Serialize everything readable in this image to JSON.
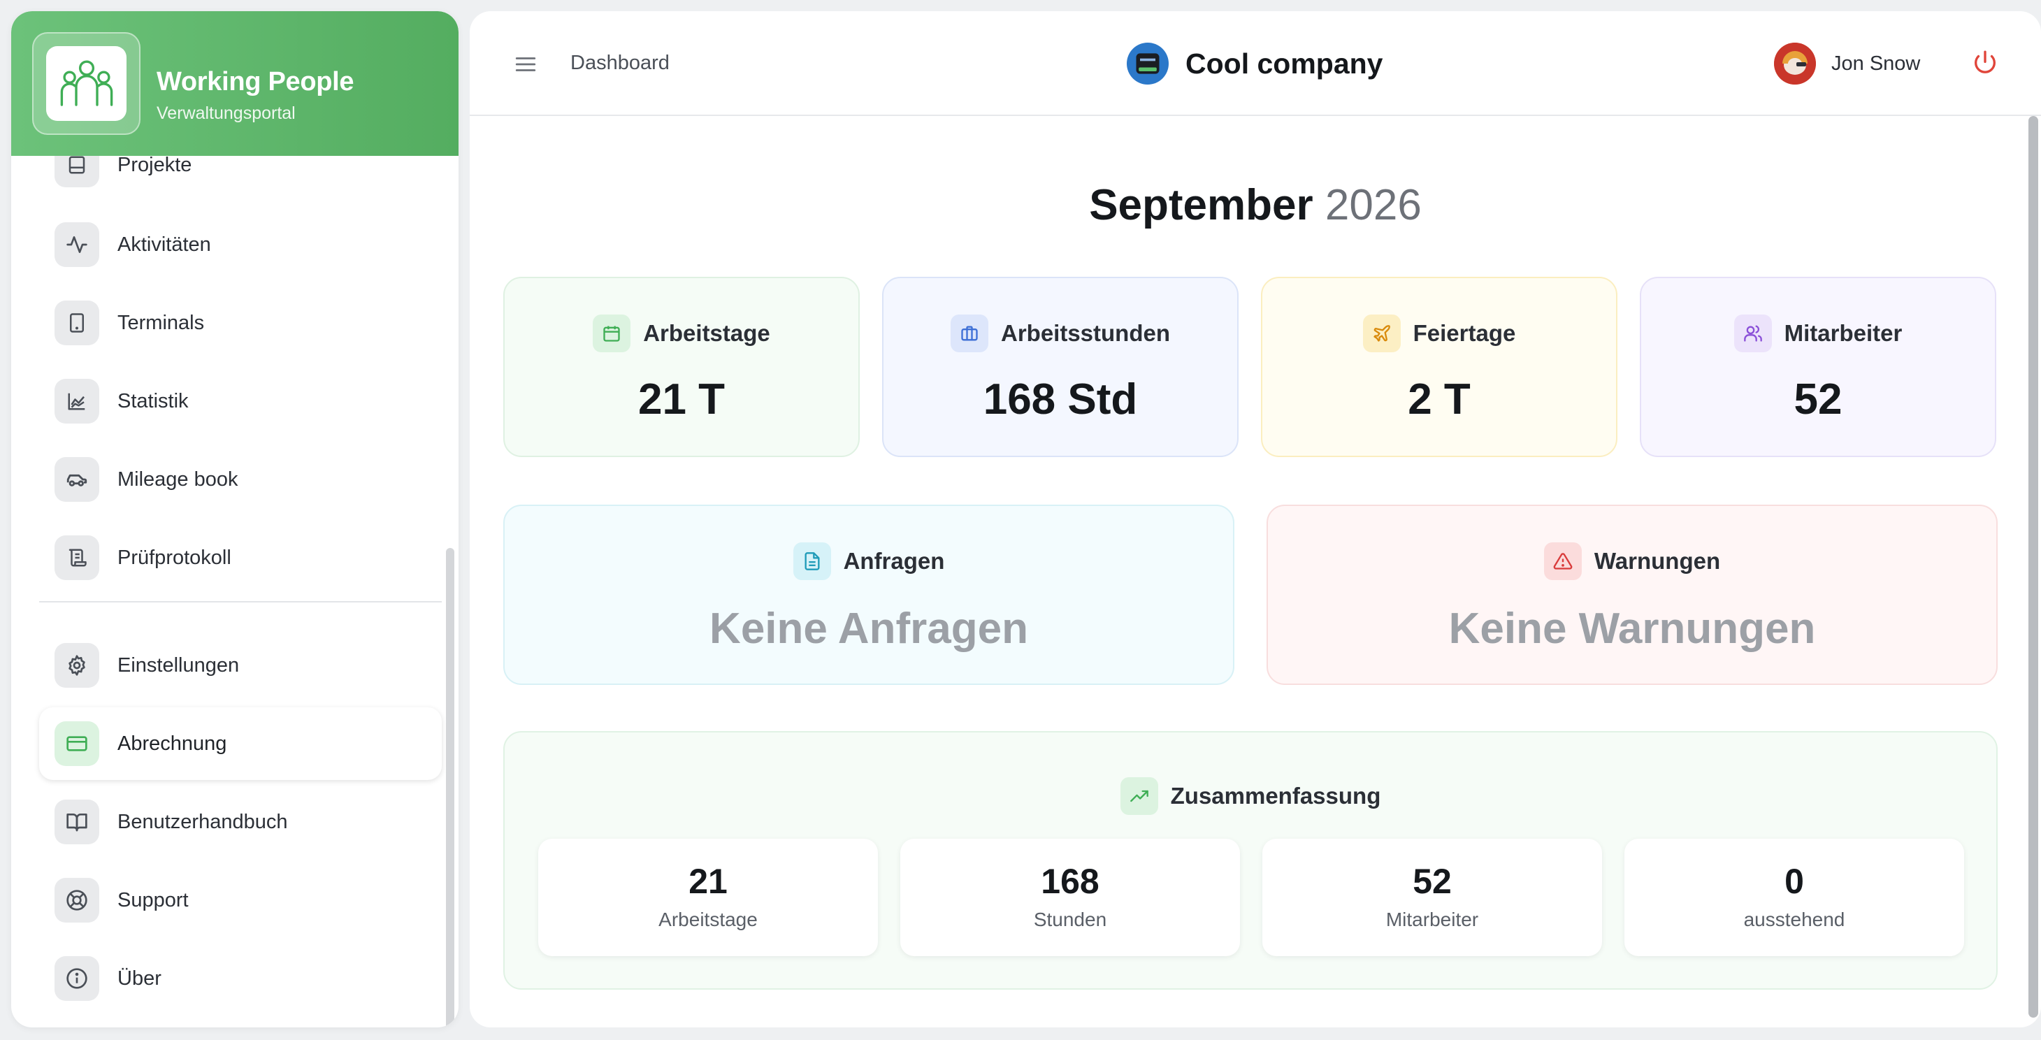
{
  "brand": {
    "title": "Working People",
    "subtitle": "Verwaltungsportal"
  },
  "sidebar": {
    "items": [
      {
        "label": "Projekte",
        "icon": "projects-icon"
      },
      {
        "label": "Aktivitäten",
        "icon": "activity-icon"
      },
      {
        "label": "Terminals",
        "icon": "tablet-icon"
      },
      {
        "label": "Statistik",
        "icon": "chart-icon"
      },
      {
        "label": "Mileage book",
        "icon": "car-icon"
      },
      {
        "label": "Prüfprotokoll",
        "icon": "scroll-icon"
      },
      {
        "label": "Einstellungen",
        "icon": "gear-icon"
      },
      {
        "label": "Abrechnung",
        "icon": "credit-card-icon",
        "active": true
      },
      {
        "label": "Benutzerhandbuch",
        "icon": "book-icon"
      },
      {
        "label": "Support",
        "icon": "lifebuoy-icon"
      },
      {
        "label": "Über",
        "icon": "info-icon"
      }
    ]
  },
  "header": {
    "breadcrumb": "Dashboard",
    "company": "Cool company",
    "user": "Jon Snow"
  },
  "dashboard": {
    "month": "September",
    "year": "2026",
    "stats": [
      {
        "label": "Arbeitstage",
        "value": "21 T",
        "icon": "calendar-icon",
        "color": "#3fae55"
      },
      {
        "label": "Arbeitsstunden",
        "value": "168 Std",
        "icon": "briefcase-icon",
        "color": "#3d6fd6"
      },
      {
        "label": "Feiertage",
        "value": "2 T",
        "icon": "plane-icon",
        "color": "#d98a0b"
      },
      {
        "label": "Mitarbeiter",
        "value": "52",
        "icon": "users-icon",
        "color": "#8a4fd8"
      }
    ],
    "requests": {
      "label": "Anfragen",
      "value": "Keine Anfragen",
      "icon": "document-icon",
      "color": "#1f9bb8"
    },
    "warnings": {
      "label": "Warnungen",
      "value": "Keine Warnungen",
      "icon": "warning-icon",
      "color": "#d93b3b"
    },
    "summary": {
      "label": "Zusammenfassung",
      "icon": "trending-up-icon",
      "items": [
        {
          "value": "21",
          "label": "Arbeitstage"
        },
        {
          "value": "168",
          "label": "Stunden"
        },
        {
          "value": "52",
          "label": "Mitarbeiter"
        },
        {
          "value": "0",
          "label": "ausstehend"
        }
      ]
    }
  }
}
